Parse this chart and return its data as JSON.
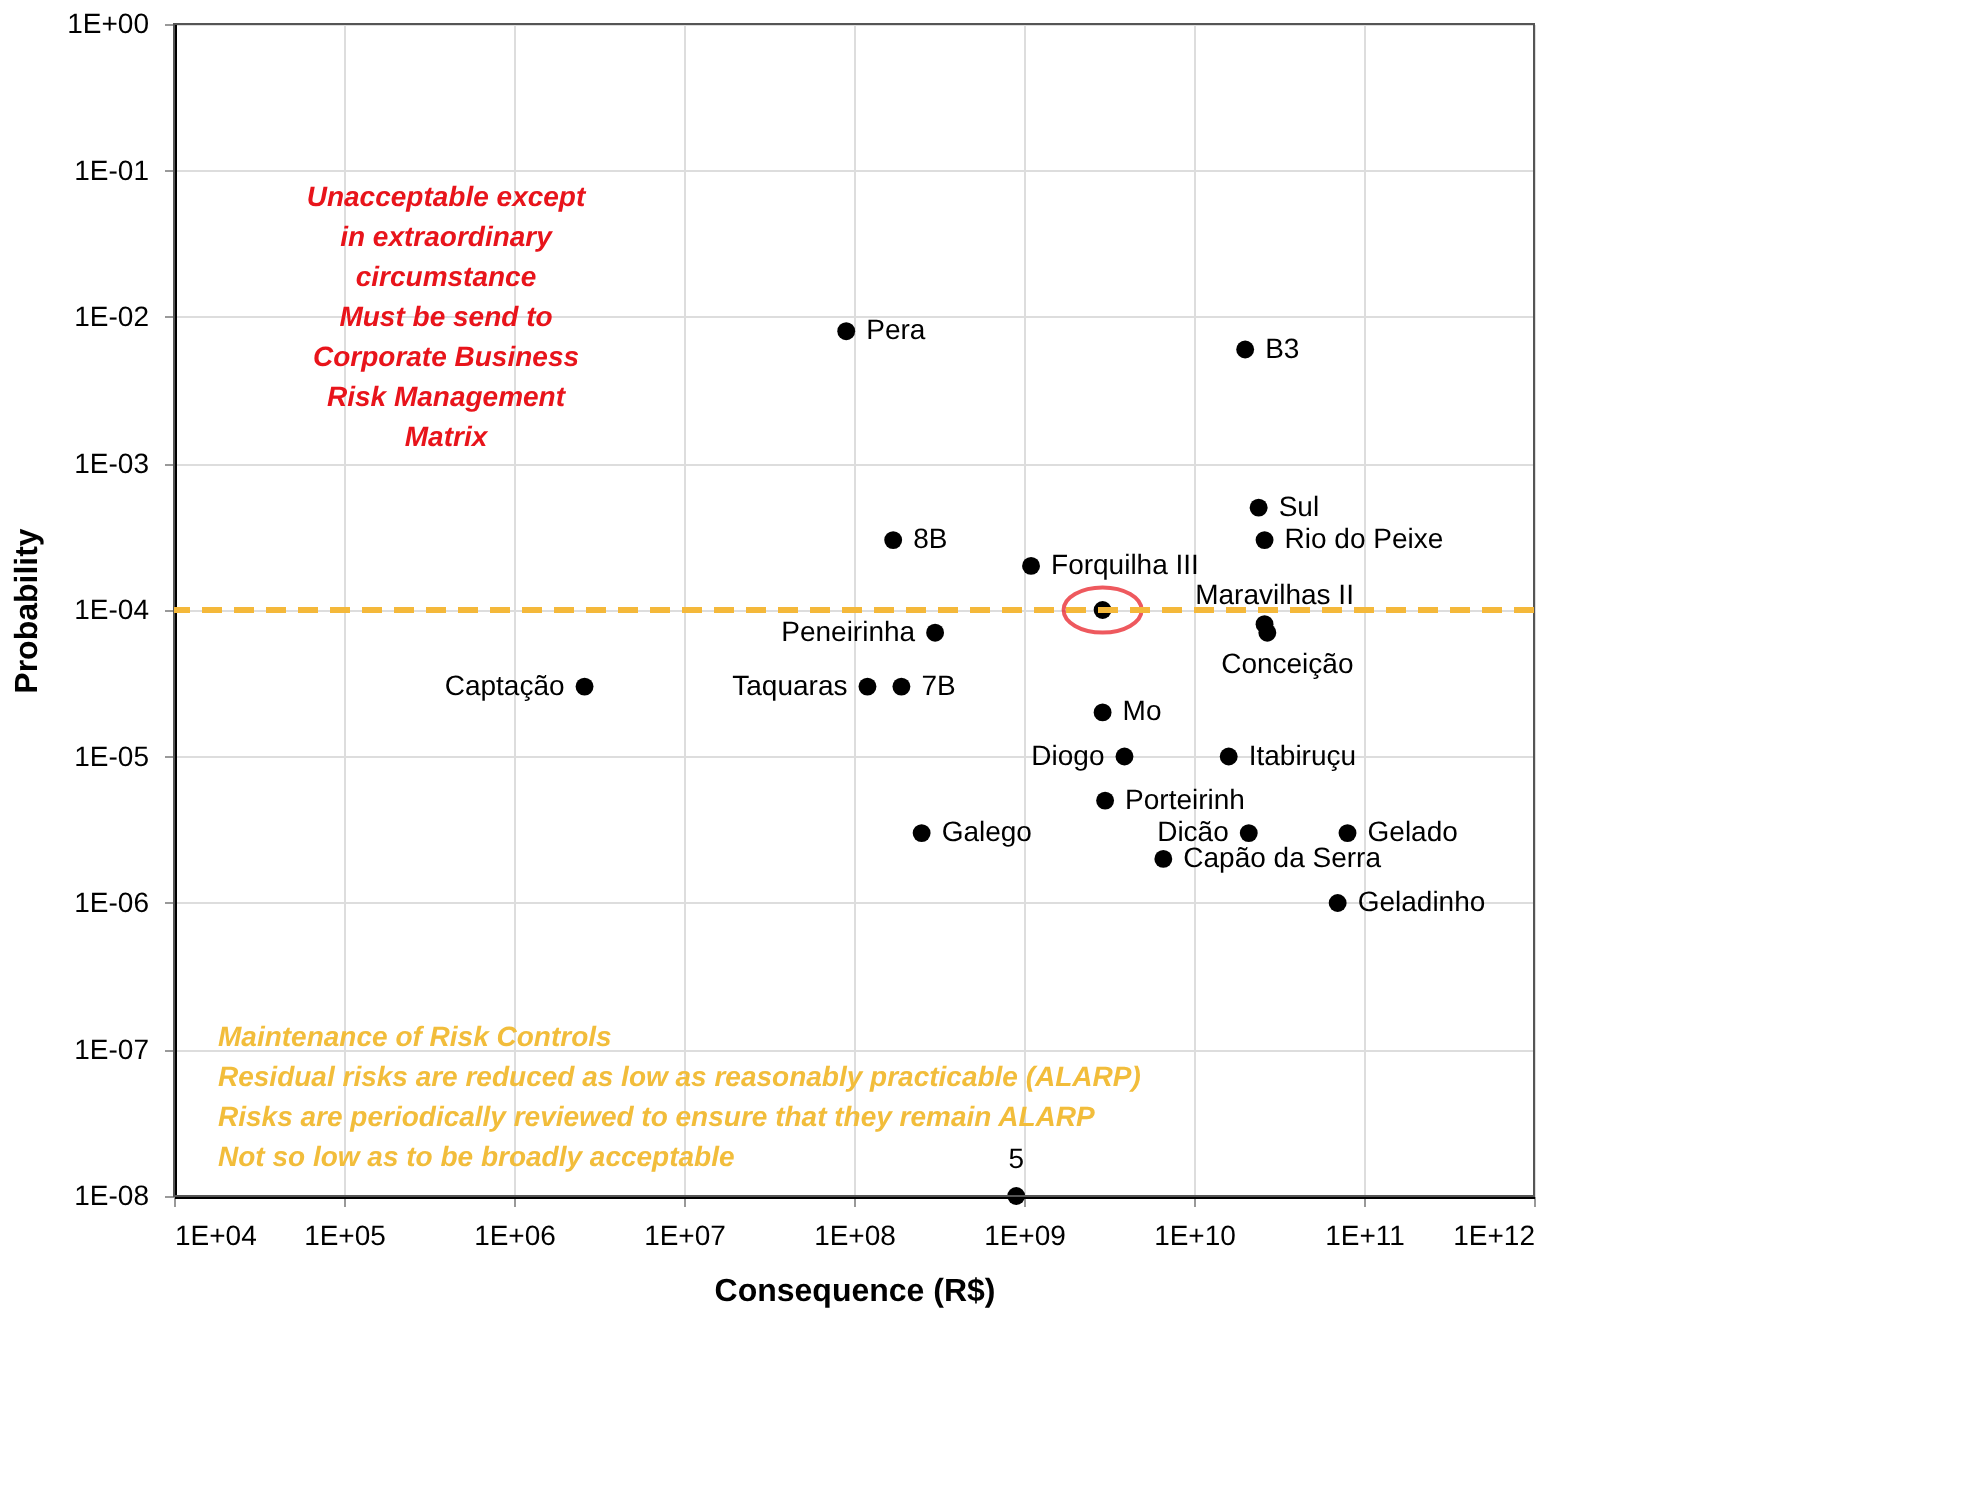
{
  "chart_data": {
    "type": "scatter",
    "xlabel": "Consequence (R$)",
    "ylabel": "Probability",
    "log": "xy",
    "grid": true,
    "marker": "circle",
    "xlim": [
      10000,
      1000000000000
    ],
    "ylim": [
      1e-08,
      1
    ],
    "xticks": [
      {
        "value": 10000,
        "label": "1E+04"
      },
      {
        "value": 100000,
        "label": "1E+05"
      },
      {
        "value": 1000000,
        "label": "1E+06"
      },
      {
        "value": 10000000,
        "label": "1E+07"
      },
      {
        "value": 100000000,
        "label": "1E+08"
      },
      {
        "value": 1000000000,
        "label": "1E+09"
      },
      {
        "value": 10000000000,
        "label": "1E+10"
      },
      {
        "value": 100000000000,
        "label": "1E+11"
      },
      {
        "value": 1000000000000,
        "label": "1E+12"
      }
    ],
    "yticks": [
      {
        "value": 1e-08,
        "label": "1E-08"
      },
      {
        "value": 1e-07,
        "label": "1E-07"
      },
      {
        "value": 1e-06,
        "label": "1E-06"
      },
      {
        "value": 1e-05,
        "label": "1E-05"
      },
      {
        "value": 0.0001,
        "label": "1E-04"
      },
      {
        "value": 0.001,
        "label": "1E-03"
      },
      {
        "value": 0.01,
        "label": "1E-02"
      },
      {
        "value": 0.1,
        "label": "1E-01"
      },
      {
        "value": 1,
        "label": "1E+00"
      }
    ],
    "series": [
      {
        "name": "Pera",
        "color": "#000000",
        "x": [
          90000000.0
        ],
        "values": [
          0.008
        ]
      },
      {
        "name": "B3",
        "color": "#000000",
        "x": [
          20000000000.0
        ],
        "values": [
          0.006
        ]
      },
      {
        "name": "Sul",
        "color": "#000000",
        "x": [
          24000000000.0
        ],
        "values": [
          0.0005
        ]
      },
      {
        "name": "Rio do Peixe",
        "color": "#000000",
        "x": [
          26000000000.0
        ],
        "values": [
          0.0003
        ]
      },
      {
        "name": "8B",
        "color": "#000000",
        "x": [
          170000000.0
        ],
        "values": [
          0.0003
        ]
      },
      {
        "name": "Forquilha III",
        "color": "#000000",
        "x": [
          1100000000.0
        ],
        "values": [
          0.0002
        ]
      },
      {
        "color": "#000000",
        "x": [
          2900000000.0
        ],
        "values": [
          0.0001
        ]
      },
      {
        "name": "Maravilhas II",
        "color": "#000000",
        "x": [
          26000000000.0
        ],
        "values": [
          8e-05
        ]
      },
      {
        "name": "Conceição",
        "color": "#000000",
        "x": [
          27000000000.0
        ],
        "values": [
          7e-05
        ]
      },
      {
        "name": "Peneirinha",
        "color": "#000000",
        "x": [
          300000000.0
        ],
        "values": [
          7e-05
        ]
      },
      {
        "name": "Captação",
        "color": "#000000",
        "x": [
          2600000.0
        ],
        "values": [
          3e-05
        ]
      },
      {
        "name": "Taquaras",
        "color": "#000000",
        "x": [
          120000000.0
        ],
        "values": [
          3e-05
        ]
      },
      {
        "name": "7B",
        "color": "#000000",
        "x": [
          190000000.0
        ],
        "values": [
          3e-05
        ]
      },
      {
        "name": "Mo",
        "color": "#000000",
        "x": [
          2900000000.0
        ],
        "values": [
          2e-05
        ]
      },
      {
        "name": "Diogo",
        "color": "#000000",
        "x": [
          3900000000.0
        ],
        "values": [
          1e-05
        ]
      },
      {
        "name": "Itabiruçu",
        "color": "#000000",
        "x": [
          16000000000.0
        ],
        "values": [
          1e-05
        ]
      },
      {
        "name": "Porteirinh",
        "color": "#000000",
        "x": [
          3000000000.0
        ],
        "values": [
          5e-06
        ]
      },
      {
        "name": "Galego",
        "color": "#000000",
        "x": [
          250000000.0
        ],
        "values": [
          3e-06
        ]
      },
      {
        "name": "Dicão",
        "color": "#000000",
        "x": [
          21000000000.0
        ],
        "values": [
          3e-06
        ]
      },
      {
        "name": "Gelado",
        "color": "#000000",
        "x": [
          80000000000.0
        ],
        "values": [
          3e-06
        ]
      },
      {
        "name": "Capão da Serra",
        "color": "#000000",
        "x": [
          6600000000.0
        ],
        "values": [
          2e-06
        ]
      },
      {
        "name": "Geladinho",
        "color": "#000000",
        "x": [
          70000000000.0
        ],
        "values": [
          1e-06
        ]
      },
      {
        "name": "5",
        "color": "#000000",
        "x": [
          900000000.0
        ],
        "values": [
          1e-08
        ]
      }
    ],
    "ref_lines": [
      {
        "axis": "y",
        "value": 0.0001,
        "color": "#f4b83a",
        "line_style": "dashed"
      }
    ],
    "annotations": [
      "Unacceptable except\nin extraordinary\ncircumstance\n\nMust be send to\nCorporate Business\nRisk Management\nMatrix",
      "Maintenance of Risk Controls\nResidual risks are reduced as low as reasonably practicable (ALARP)\nRisks are periodically reviewed to ensure that they remain ALARP\nNot so low as to be broadly acceptable"
    ]
  }
}
